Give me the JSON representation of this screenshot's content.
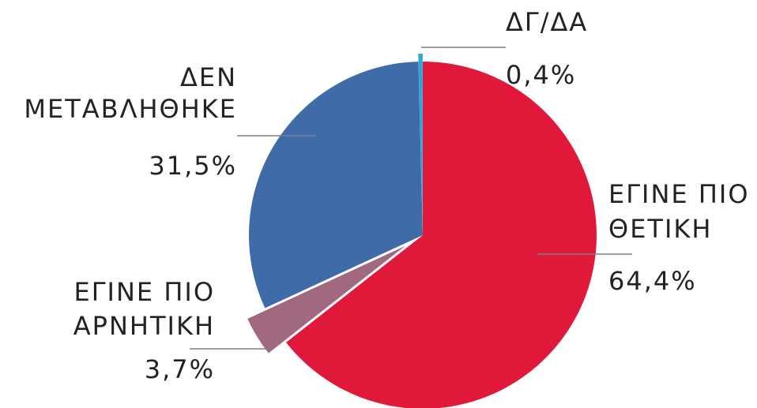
{
  "chart_data": {
    "type": "pie",
    "labels": [
      [
        "ΕΓΙΝΕ ΠΙΟ",
        "ΘΕΤΙΚΗ"
      ],
      [
        "ΕΓΙΝΕ ΠΙΟ",
        "ΑΡΝΗΤΙΚΗ"
      ],
      [
        "ΔΕΝ",
        "ΜΕΤΑΒΛΗΘΗΚΕ"
      ],
      [
        "ΔΓ/ΔΑ"
      ]
    ],
    "values": [
      64.4,
      3.7,
      31.5,
      0.4
    ],
    "value_labels": [
      "64,4%",
      "3,7%",
      "31,5%",
      "0,4%"
    ],
    "colors": [
      "#e0193a",
      "#a0697f",
      "#3f6ca8",
      "#2aa7d9"
    ]
  }
}
